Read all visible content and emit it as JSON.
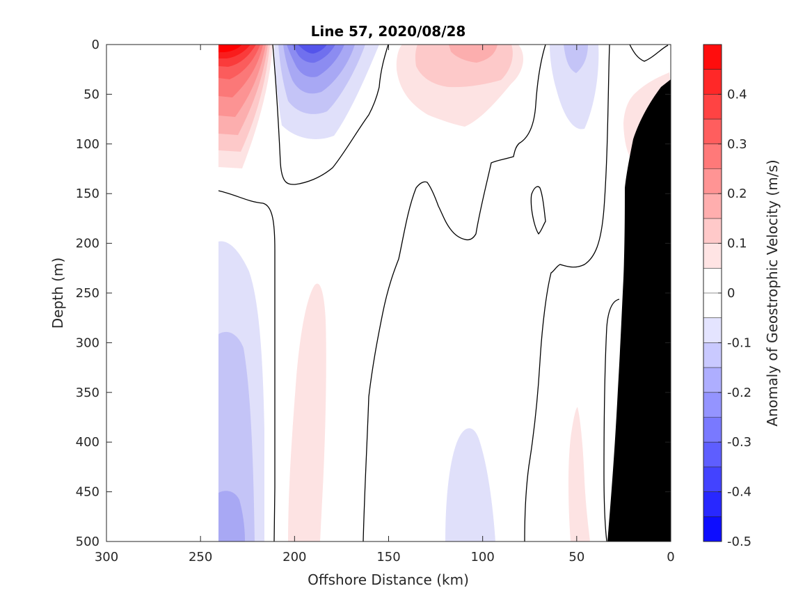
{
  "chart_data": {
    "type": "filled-contour",
    "title": "Line 57, 2020/08/28",
    "xlabel": "Offshore Distance (km)",
    "ylabel": "Depth (m)",
    "colorbar_label": "Anomaly of Geostrophic Velocity (m/s)",
    "x_ticks": [
      "300",
      "250",
      "200",
      "150",
      "100",
      "50",
      "0"
    ],
    "y_ticks": [
      "0",
      "50",
      "100",
      "150",
      "200",
      "250",
      "300",
      "350",
      "400",
      "450",
      "500"
    ],
    "colorbar_ticks": [
      "0.4",
      "0.3",
      "0.2",
      "0.1",
      "0",
      "-0.1",
      "-0.2",
      "-0.3",
      "-0.4",
      "-0.5"
    ],
    "colorbar_levels": [
      -0.5,
      0.5
    ],
    "xlim": [
      300,
      0
    ],
    "ylim": [
      0,
      500
    ],
    "zero_contour_color": "#000000",
    "land_color": "#000000",
    "features": [
      {
        "sign": "positive",
        "x": [
          212,
          240
        ],
        "y": [
          0,
          125
        ],
        "peak": 0.45
      },
      {
        "sign": "negative",
        "x": [
          150,
          210
        ],
        "y": [
          0,
          100
        ],
        "peak": -0.3
      },
      {
        "sign": "positive",
        "x": [
          78,
          145
        ],
        "y": [
          0,
          85
        ],
        "peak": 0.15
      },
      {
        "sign": "negative",
        "x": [
          40,
          62
        ],
        "y": [
          0,
          90
        ],
        "peak": -0.12
      },
      {
        "sign": "positive",
        "x": [
          12,
          25
        ],
        "y": [
          30,
          120
        ],
        "peak": 0.08
      },
      {
        "sign": "negative",
        "x": [
          216,
          240
        ],
        "y": [
          195,
          500
        ],
        "peak": -0.22
      },
      {
        "sign": "positive",
        "x": [
          185,
          202
        ],
        "y": [
          240,
          500
        ],
        "peak": 0.08
      },
      {
        "sign": "negative",
        "x": [
          93,
          120
        ],
        "y": [
          375,
          500
        ],
        "peak": -0.08
      },
      {
        "sign": "positive",
        "x": [
          42,
          55
        ],
        "y": [
          365,
          500
        ],
        "peak": 0.08
      }
    ]
  }
}
